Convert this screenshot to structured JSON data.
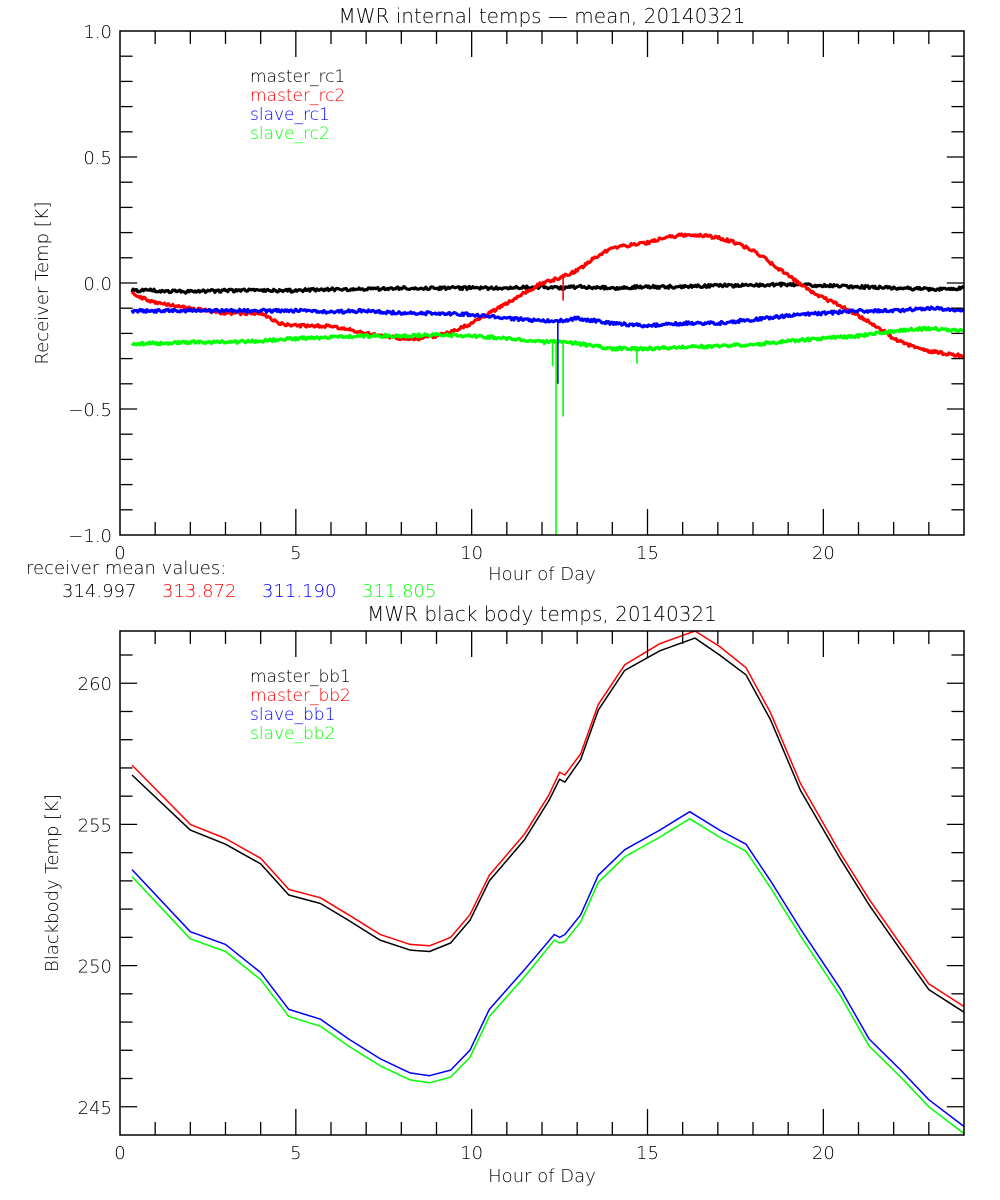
{
  "chart_data": [
    {
      "type": "line",
      "title": "MWR internal temps — mean, 20140321",
      "xlabel": "Hour of Day",
      "ylabel": "Receiver Temp [K]",
      "xlim": [
        0,
        24
      ],
      "ylim": [
        -1.0,
        1.0
      ],
      "xticks": [
        0,
        5,
        10,
        15,
        20
      ],
      "xtick_labels": [
        "0",
        "5",
        "10",
        "15",
        "20"
      ],
      "yticks": [
        -1.0,
        -0.5,
        0.0,
        0.5,
        1.0
      ],
      "ytick_labels": [
        "−1.0",
        "−0.5",
        "0.0",
        "0.5",
        "1.0"
      ],
      "grid": false,
      "legend_position": "top-left (inside)",
      "series": [
        {
          "name": "master_rc1",
          "color": "#000000",
          "x": [
            0.34,
            1,
            2,
            3,
            4,
            5,
            6,
            7,
            8,
            9,
            10,
            11,
            12,
            12.5,
            13,
            14,
            15,
            16,
            17,
            18,
            19,
            20,
            21,
            22,
            23,
            24
          ],
          "y": [
            -0.03,
            -0.03,
            -0.035,
            -0.03,
            -0.03,
            -0.03,
            -0.025,
            -0.025,
            -0.02,
            -0.02,
            -0.02,
            -0.02,
            -0.015,
            -0.02,
            -0.015,
            -0.02,
            -0.015,
            -0.015,
            -0.01,
            -0.01,
            -0.005,
            -0.01,
            -0.015,
            -0.02,
            -0.025,
            -0.02
          ]
        },
        {
          "name": "master_rc2",
          "color": "#ff0000",
          "x": [
            0.34,
            1,
            2,
            3,
            4,
            4.5,
            5,
            6,
            7,
            8,
            8.5,
            9,
            9.5,
            10,
            10.5,
            11,
            11.5,
            12,
            12.5,
            13,
            13.5,
            14,
            14.5,
            15,
            15.5,
            16,
            16.5,
            17,
            17.5,
            18,
            18.5,
            19,
            19.5,
            20,
            20.5,
            21,
            21.5,
            22,
            22.5,
            23,
            23.5,
            24
          ],
          "y": [
            -0.04,
            -0.08,
            -0.1,
            -0.12,
            -0.12,
            -0.16,
            -0.17,
            -0.17,
            -0.2,
            -0.22,
            -0.22,
            -0.21,
            -0.19,
            -0.16,
            -0.12,
            -0.08,
            -0.04,
            0.0,
            0.02,
            0.05,
            0.1,
            0.14,
            0.15,
            0.16,
            0.18,
            0.19,
            0.19,
            0.18,
            0.16,
            0.13,
            0.08,
            0.03,
            -0.02,
            -0.06,
            -0.09,
            -0.13,
            -0.17,
            -0.22,
            -0.25,
            -0.27,
            -0.28,
            -0.29
          ]
        },
        {
          "name": "slave_rc1",
          "color": "#0000ff",
          "x": [
            0.34,
            1,
            2,
            3,
            4,
            5,
            6,
            7,
            8,
            9,
            10,
            11,
            12,
            12.5,
            13,
            14,
            15,
            16,
            17,
            18,
            19,
            20,
            21,
            22,
            23,
            24
          ],
          "y": [
            -0.11,
            -0.11,
            -0.11,
            -0.11,
            -0.11,
            -0.11,
            -0.115,
            -0.11,
            -0.12,
            -0.12,
            -0.125,
            -0.14,
            -0.15,
            -0.15,
            -0.14,
            -0.16,
            -0.17,
            -0.16,
            -0.16,
            -0.145,
            -0.13,
            -0.12,
            -0.11,
            -0.11,
            -0.1,
            -0.11
          ]
        },
        {
          "name": "slave_rc2",
          "color": "#00ff00",
          "x": [
            0.34,
            1,
            2,
            3,
            4,
            5,
            6,
            7,
            8,
            9,
            10,
            11,
            12,
            12.5,
            13,
            14,
            15,
            16,
            17,
            18,
            19,
            20,
            21,
            22,
            23,
            24
          ],
          "y": [
            -0.24,
            -0.24,
            -0.235,
            -0.235,
            -0.23,
            -0.22,
            -0.215,
            -0.21,
            -0.21,
            -0.205,
            -0.21,
            -0.22,
            -0.235,
            -0.23,
            -0.24,
            -0.26,
            -0.26,
            -0.255,
            -0.25,
            -0.245,
            -0.23,
            -0.22,
            -0.21,
            -0.19,
            -0.18,
            -0.19
          ]
        }
      ],
      "spikes": [
        {
          "series": "slave_rc2",
          "x": 12.4,
          "y_min": -1.0
        },
        {
          "series": "slave_rc2",
          "x": 12.6,
          "y_min": -0.53
        },
        {
          "series": "slave_rc2",
          "x": 12.3,
          "y_min": -0.33
        },
        {
          "series": "slave_rc2",
          "x": 14.7,
          "y_min": -0.32
        },
        {
          "series": "slave_rc1",
          "x": 12.45,
          "y_min": -0.4
        },
        {
          "series": "master_rc2",
          "x": 12.6,
          "y_min": -0.07
        }
      ],
      "annotation": {
        "label": "receiver mean values:",
        "values": [
          {
            "text": "314.997",
            "color": "#000000"
          },
          {
            "text": "313.872",
            "color": "#ff0000"
          },
          {
            "text": "311.190",
            "color": "#0000ff"
          },
          {
            "text": "311.805",
            "color": "#00ff00"
          }
        ]
      }
    },
    {
      "type": "line",
      "title": "MWR black body temps, 20140321",
      "xlabel": "Hour of Day",
      "ylabel": "Blackbody Temp [K]",
      "xlim": [
        0,
        24
      ],
      "ylim": [
        244.0,
        261.85
      ],
      "xticks": [
        0,
        5,
        10,
        15,
        20
      ],
      "xtick_labels": [
        "0",
        "5",
        "10",
        "15",
        "20"
      ],
      "yticks": [
        245,
        250,
        255,
        260
      ],
      "ytick_labels": [
        "245",
        "250",
        "255",
        "260"
      ],
      "grid": false,
      "legend_position": "top-left (inside)",
      "series": [
        {
          "name": "master_bb1",
          "color": "#000000",
          "x": [
            0.34,
            2.0,
            3.0,
            4.0,
            4.8,
            5.7,
            6.5,
            7.4,
            8.25,
            8.8,
            9.4,
            9.95,
            10.5,
            11.5,
            12.2,
            12.5,
            12.65,
            13.1,
            13.6,
            14.35,
            15.35,
            16.35,
            17.05,
            17.8,
            18.5,
            19.35,
            20.5,
            21.3,
            22.2,
            23.0,
            24.0
          ],
          "y": [
            256.75,
            254.8,
            254.3,
            253.6,
            252.5,
            252.2,
            251.6,
            250.9,
            250.55,
            250.5,
            250.8,
            251.6,
            253.0,
            254.45,
            255.85,
            256.6,
            256.5,
            257.3,
            259.05,
            260.45,
            261.15,
            261.6,
            261.0,
            260.3,
            258.7,
            256.2,
            253.75,
            252.15,
            250.55,
            249.15,
            248.35
          ]
        },
        {
          "name": "master_bb2",
          "color": "#ff0000",
          "x": [
            0.34,
            2.0,
            3.0,
            4.0,
            4.8,
            5.7,
            6.5,
            7.4,
            8.25,
            8.8,
            9.4,
            9.95,
            10.5,
            11.5,
            12.2,
            12.5,
            12.65,
            13.1,
            13.6,
            14.35,
            15.35,
            16.35,
            17.05,
            17.8,
            18.5,
            19.35,
            20.5,
            21.3,
            22.2,
            23.0,
            24.0
          ],
          "y": [
            257.1,
            255.0,
            254.5,
            253.8,
            252.7,
            252.4,
            251.8,
            251.1,
            250.75,
            250.7,
            251.0,
            251.8,
            253.2,
            254.65,
            256.05,
            256.85,
            256.75,
            257.5,
            259.25,
            260.65,
            261.4,
            261.85,
            261.3,
            260.55,
            258.95,
            256.45,
            253.95,
            252.35,
            250.75,
            249.35,
            248.55
          ]
        },
        {
          "name": "slave_bb1",
          "color": "#0000ff",
          "x": [
            0.34,
            2.0,
            3.0,
            4.0,
            4.8,
            5.7,
            6.5,
            7.4,
            8.25,
            8.8,
            9.4,
            9.95,
            10.5,
            11.5,
            12.35,
            12.5,
            12.65,
            13.1,
            13.6,
            14.35,
            15.35,
            16.2,
            17.05,
            17.8,
            18.5,
            19.35,
            20.5,
            21.3,
            22.2,
            23.0,
            24.0
          ],
          "y": [
            253.4,
            251.2,
            250.75,
            249.75,
            248.45,
            248.1,
            247.4,
            246.7,
            246.2,
            246.1,
            246.3,
            247.0,
            248.45,
            249.85,
            251.1,
            251.0,
            251.1,
            251.8,
            253.2,
            254.1,
            254.8,
            255.45,
            254.8,
            254.3,
            253.0,
            251.3,
            249.15,
            247.4,
            246.3,
            245.25,
            244.3
          ]
        },
        {
          "name": "slave_bb2",
          "color": "#00ff00",
          "x": [
            0.34,
            2.0,
            3.0,
            4.0,
            4.8,
            5.7,
            6.5,
            7.4,
            8.25,
            8.8,
            9.4,
            9.95,
            10.5,
            11.5,
            12.35,
            12.5,
            12.65,
            13.1,
            13.6,
            14.35,
            15.35,
            16.2,
            17.05,
            17.8,
            18.5,
            19.35,
            20.5,
            21.3,
            22.2,
            23.0,
            24.0
          ],
          "y": [
            253.15,
            250.95,
            250.5,
            249.5,
            248.2,
            247.85,
            247.15,
            246.45,
            245.95,
            245.85,
            246.05,
            246.75,
            248.2,
            249.6,
            250.9,
            250.8,
            250.85,
            251.55,
            252.95,
            253.85,
            254.55,
            255.2,
            254.55,
            254.05,
            252.75,
            251.05,
            248.9,
            247.15,
            246.05,
            245.0,
            244.05
          ]
        }
      ]
    }
  ]
}
